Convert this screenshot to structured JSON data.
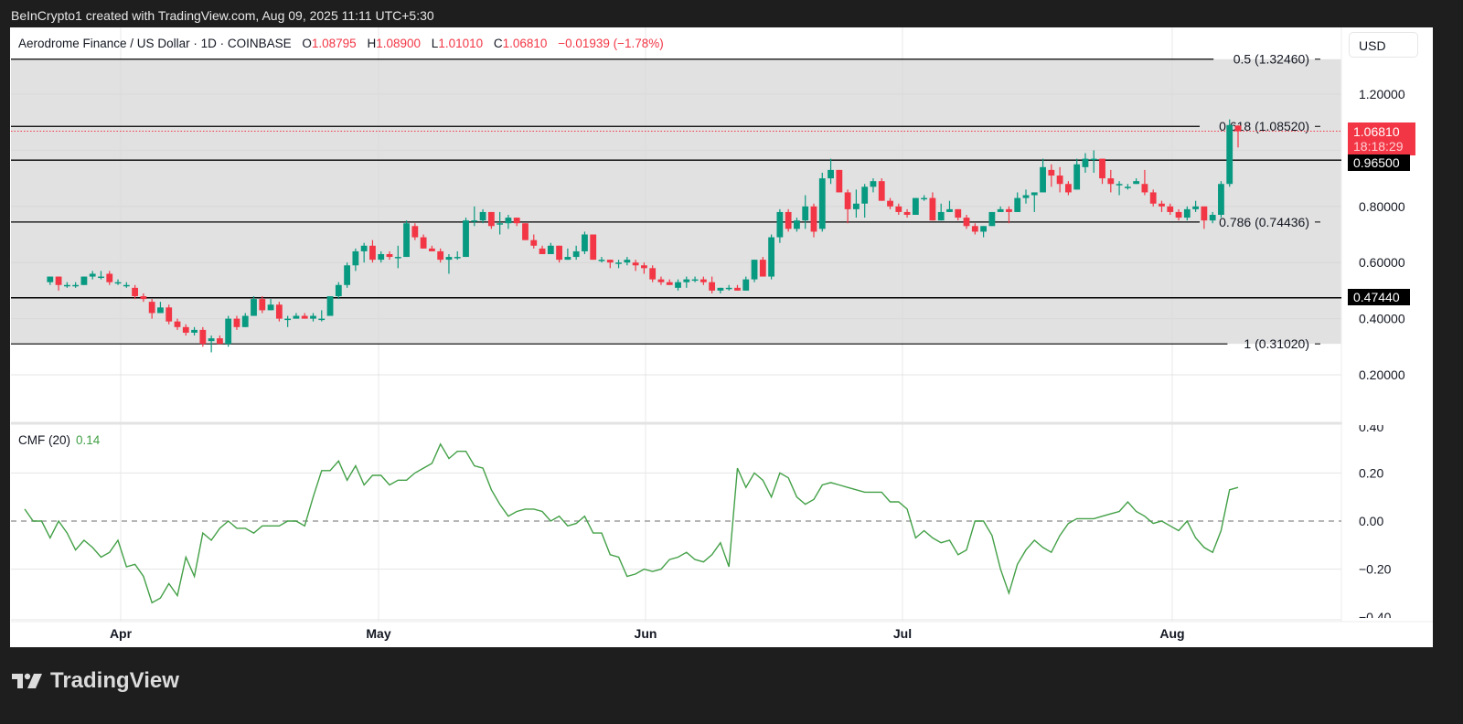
{
  "caption": "BeInCrypto1 created with TradingView.com, Aug 09, 2025 11:11 UTC+5:30",
  "symbol": {
    "title": "Aerodrome Finance / US Dollar · 1D · COINBASE",
    "open_label": "O",
    "open": "1.08795",
    "high_label": "H",
    "high": "1.08900",
    "low_label": "L",
    "low": "1.01010",
    "close_label": "C",
    "close": "1.06810",
    "change": "−0.01939 (−1.78%)"
  },
  "currency_button": "USD",
  "price_axis": {
    "ticks": [
      "1.20000",
      "0.80000",
      "0.60000",
      "0.40000",
      "0.20000"
    ],
    "last_price": "1.06810",
    "countdown": "18:18:29",
    "level_tags": [
      "0.96500",
      "0.47440"
    ]
  },
  "fib_levels": [
    {
      "label": "0.5 (1.32460)",
      "price": 1.3246
    },
    {
      "label": "0.618 (1.08520)",
      "price": 1.0852
    },
    {
      "label": "0.786 (0.74436)",
      "price": 0.74436
    },
    {
      "label": "1 (0.31020)",
      "price": 0.3102
    }
  ],
  "horizontal_lines": [
    0.965,
    0.4744
  ],
  "cmf": {
    "title": "CMF (20)",
    "value": "0.14",
    "ticks": [
      "0.40",
      "0.20",
      "0.00",
      "−0.20",
      "−0.40"
    ]
  },
  "time_axis": [
    "Apr",
    "May",
    "Jun",
    "Jul",
    "Aug"
  ],
  "branding": "TradingView",
  "colors": {
    "up": "#089981",
    "down": "#f23645",
    "cmf": "#43a047",
    "zone": "#e1e1e1"
  },
  "chart_data": [
    {
      "type": "candlestick",
      "title": "Aerodrome Finance / US Dollar · 1D · COINBASE",
      "ylabel": "USD",
      "ylim": [
        0.1,
        1.4
      ],
      "x_ticks": [
        "Apr",
        "May",
        "Jun",
        "Jul",
        "Aug"
      ],
      "x_range": [
        "2025-03-18",
        "2025-08-09"
      ],
      "annotations": [
        "Fib 0.5 (1.32460)",
        "Fib 0.618 (1.08520)",
        "Fib 0.786 (0.74436)",
        "Fib 1 (0.31020)",
        "Support 0.96500",
        "Support 0.47440"
      ],
      "last": {
        "open": 1.08795,
        "high": 1.089,
        "low": 1.0101,
        "close": 1.0681
      },
      "ohlc": [
        [
          0.53,
          0.55,
          0.52,
          0.55
        ],
        [
          0.55,
          0.55,
          0.5,
          0.52
        ],
        [
          0.52,
          0.53,
          0.51,
          0.52
        ],
        [
          0.52,
          0.53,
          0.51,
          0.52
        ],
        [
          0.52,
          0.55,
          0.52,
          0.55
        ],
        [
          0.55,
          0.57,
          0.54,
          0.56
        ],
        [
          0.55,
          0.57,
          0.54,
          0.55
        ],
        [
          0.56,
          0.57,
          0.52,
          0.53
        ],
        [
          0.53,
          0.54,
          0.52,
          0.53
        ],
        [
          0.52,
          0.53,
          0.51,
          0.52
        ],
        [
          0.51,
          0.52,
          0.47,
          0.48
        ],
        [
          0.48,
          0.49,
          0.46,
          0.47
        ],
        [
          0.46,
          0.47,
          0.4,
          0.42
        ],
        [
          0.42,
          0.46,
          0.42,
          0.44
        ],
        [
          0.44,
          0.45,
          0.38,
          0.39
        ],
        [
          0.39,
          0.4,
          0.36,
          0.37
        ],
        [
          0.37,
          0.38,
          0.34,
          0.35
        ],
        [
          0.35,
          0.37,
          0.34,
          0.36
        ],
        [
          0.36,
          0.37,
          0.3,
          0.31
        ],
        [
          0.32,
          0.34,
          0.28,
          0.33
        ],
        [
          0.33,
          0.34,
          0.31,
          0.31
        ],
        [
          0.31,
          0.41,
          0.3,
          0.4
        ],
        [
          0.4,
          0.41,
          0.36,
          0.37
        ],
        [
          0.37,
          0.42,
          0.37,
          0.41
        ],
        [
          0.41,
          0.48,
          0.41,
          0.47
        ],
        [
          0.47,
          0.48,
          0.42,
          0.43
        ],
        [
          0.43,
          0.47,
          0.43,
          0.45
        ],
        [
          0.45,
          0.46,
          0.39,
          0.4
        ],
        [
          0.4,
          0.41,
          0.37,
          0.4
        ],
        [
          0.4,
          0.42,
          0.4,
          0.41
        ],
        [
          0.41,
          0.42,
          0.4,
          0.4
        ],
        [
          0.4,
          0.42,
          0.39,
          0.41
        ],
        [
          0.4,
          0.43,
          0.39,
          0.4
        ],
        [
          0.41,
          0.48,
          0.41,
          0.48
        ],
        [
          0.48,
          0.53,
          0.47,
          0.52
        ],
        [
          0.52,
          0.6,
          0.51,
          0.59
        ],
        [
          0.59,
          0.65,
          0.57,
          0.64
        ],
        [
          0.64,
          0.67,
          0.6,
          0.66
        ],
        [
          0.66,
          0.68,
          0.6,
          0.61
        ],
        [
          0.61,
          0.64,
          0.6,
          0.63
        ],
        [
          0.63,
          0.64,
          0.61,
          0.62
        ],
        [
          0.62,
          0.66,
          0.58,
          0.62
        ],
        [
          0.62,
          0.75,
          0.62,
          0.74
        ],
        [
          0.73,
          0.74,
          0.68,
          0.69
        ],
        [
          0.69,
          0.7,
          0.65,
          0.65
        ],
        [
          0.65,
          0.66,
          0.64,
          0.64
        ],
        [
          0.64,
          0.65,
          0.6,
          0.61
        ],
        [
          0.61,
          0.63,
          0.56,
          0.62
        ],
        [
          0.62,
          0.64,
          0.61,
          0.62
        ],
        [
          0.62,
          0.76,
          0.62,
          0.75
        ],
        [
          0.75,
          0.8,
          0.73,
          0.75
        ],
        [
          0.75,
          0.79,
          0.74,
          0.78
        ],
        [
          0.78,
          0.78,
          0.72,
          0.73
        ],
        [
          0.74,
          0.78,
          0.7,
          0.74
        ],
        [
          0.74,
          0.77,
          0.72,
          0.76
        ],
        [
          0.76,
          0.76,
          0.73,
          0.74
        ],
        [
          0.74,
          0.74,
          0.68,
          0.68
        ],
        [
          0.68,
          0.7,
          0.65,
          0.66
        ],
        [
          0.65,
          0.66,
          0.63,
          0.63
        ],
        [
          0.63,
          0.67,
          0.63,
          0.66
        ],
        [
          0.66,
          0.66,
          0.6,
          0.61
        ],
        [
          0.61,
          0.65,
          0.61,
          0.62
        ],
        [
          0.62,
          0.66,
          0.61,
          0.64
        ],
        [
          0.64,
          0.71,
          0.63,
          0.7
        ],
        [
          0.7,
          0.7,
          0.61,
          0.61
        ],
        [
          0.61,
          0.62,
          0.6,
          0.61
        ],
        [
          0.61,
          0.61,
          0.58,
          0.6
        ],
        [
          0.6,
          0.61,
          0.58,
          0.6
        ],
        [
          0.6,
          0.62,
          0.59,
          0.61
        ],
        [
          0.6,
          0.61,
          0.57,
          0.59
        ],
        [
          0.59,
          0.6,
          0.56,
          0.58
        ],
        [
          0.58,
          0.59,
          0.53,
          0.54
        ],
        [
          0.54,
          0.55,
          0.52,
          0.53
        ],
        [
          0.53,
          0.54,
          0.52,
          0.52
        ],
        [
          0.51,
          0.54,
          0.5,
          0.53
        ],
        [
          0.53,
          0.55,
          0.51,
          0.54
        ],
        [
          0.54,
          0.55,
          0.53,
          0.54
        ],
        [
          0.54,
          0.55,
          0.52,
          0.53
        ],
        [
          0.53,
          0.55,
          0.49,
          0.5
        ],
        [
          0.5,
          0.51,
          0.49,
          0.51
        ],
        [
          0.51,
          0.52,
          0.5,
          0.51
        ],
        [
          0.51,
          0.52,
          0.5,
          0.5
        ],
        [
          0.5,
          0.55,
          0.5,
          0.54
        ],
        [
          0.54,
          0.61,
          0.53,
          0.61
        ],
        [
          0.61,
          0.62,
          0.55,
          0.55
        ],
        [
          0.55,
          0.7,
          0.54,
          0.69
        ],
        [
          0.69,
          0.79,
          0.67,
          0.78
        ],
        [
          0.78,
          0.79,
          0.71,
          0.72
        ],
        [
          0.72,
          0.76,
          0.71,
          0.75
        ],
        [
          0.75,
          0.84,
          0.72,
          0.8
        ],
        [
          0.8,
          0.81,
          0.69,
          0.71
        ],
        [
          0.72,
          0.92,
          0.71,
          0.9
        ],
        [
          0.9,
          0.97,
          0.88,
          0.93
        ],
        [
          0.93,
          0.93,
          0.85,
          0.85
        ],
        [
          0.85,
          0.86,
          0.74,
          0.79
        ],
        [
          0.79,
          0.86,
          0.76,
          0.81
        ],
        [
          0.81,
          0.88,
          0.76,
          0.87
        ],
        [
          0.87,
          0.9,
          0.85,
          0.89
        ],
        [
          0.89,
          0.9,
          0.82,
          0.82
        ],
        [
          0.82,
          0.83,
          0.79,
          0.8
        ],
        [
          0.8,
          0.81,
          0.77,
          0.78
        ],
        [
          0.78,
          0.79,
          0.76,
          0.77
        ],
        [
          0.77,
          0.83,
          0.77,
          0.83
        ],
        [
          0.83,
          0.84,
          0.82,
          0.83
        ],
        [
          0.83,
          0.85,
          0.75,
          0.75
        ],
        [
          0.75,
          0.81,
          0.75,
          0.78
        ],
        [
          0.78,
          0.82,
          0.78,
          0.79
        ],
        [
          0.79,
          0.79,
          0.75,
          0.76
        ],
        [
          0.76,
          0.77,
          0.72,
          0.73
        ],
        [
          0.73,
          0.74,
          0.7,
          0.71
        ],
        [
          0.71,
          0.73,
          0.69,
          0.73
        ],
        [
          0.73,
          0.78,
          0.73,
          0.78
        ],
        [
          0.78,
          0.8,
          0.78,
          0.79
        ],
        [
          0.79,
          0.8,
          0.74,
          0.78
        ],
        [
          0.78,
          0.85,
          0.78,
          0.83
        ],
        [
          0.83,
          0.86,
          0.81,
          0.84
        ],
        [
          0.84,
          0.85,
          0.78,
          0.85
        ],
        [
          0.85,
          0.97,
          0.85,
          0.94
        ],
        [
          0.93,
          0.95,
          0.87,
          0.91
        ],
        [
          0.91,
          0.94,
          0.85,
          0.88
        ],
        [
          0.88,
          0.89,
          0.84,
          0.85
        ],
        [
          0.86,
          0.97,
          0.86,
          0.95
        ],
        [
          0.94,
          0.99,
          0.92,
          0.97
        ],
        [
          0.97,
          1.0,
          0.92,
          0.97
        ],
        [
          0.97,
          0.97,
          0.88,
          0.9
        ],
        [
          0.9,
          0.93,
          0.85,
          0.88
        ],
        [
          0.88,
          0.89,
          0.84,
          0.88
        ],
        [
          0.87,
          0.88,
          0.86,
          0.87
        ],
        [
          0.88,
          0.9,
          0.88,
          0.89
        ],
        [
          0.88,
          0.93,
          0.84,
          0.85
        ],
        [
          0.85,
          0.86,
          0.8,
          0.81
        ],
        [
          0.81,
          0.82,
          0.78,
          0.8
        ],
        [
          0.8,
          0.81,
          0.77,
          0.78
        ],
        [
          0.78,
          0.79,
          0.75,
          0.76
        ],
        [
          0.76,
          0.8,
          0.75,
          0.79
        ],
        [
          0.79,
          0.82,
          0.78,
          0.8
        ],
        [
          0.8,
          0.8,
          0.72,
          0.75
        ],
        [
          0.75,
          0.78,
          0.74,
          0.77
        ],
        [
          0.77,
          0.89,
          0.76,
          0.88
        ],
        [
          0.88,
          1.11,
          0.87,
          1.09
        ],
        [
          1.08795,
          1.089,
          1.0101,
          1.0681
        ]
      ]
    },
    {
      "type": "line",
      "title": "CMF (20)",
      "ylim": [
        -0.4,
        0.4
      ],
      "y_ticks": [
        0.4,
        0.2,
        0.0,
        -0.2,
        -0.4
      ],
      "zero_line": "dashed",
      "x_ticks": [
        "Apr",
        "May",
        "Jun",
        "Jul",
        "Aug"
      ],
      "last_value": 0.14,
      "values": [
        0.05,
        0.0,
        0.0,
        -0.07,
        0.0,
        -0.05,
        -0.12,
        -0.08,
        -0.11,
        -0.15,
        -0.13,
        -0.08,
        -0.19,
        -0.18,
        -0.23,
        -0.34,
        -0.32,
        -0.26,
        -0.31,
        -0.15,
        -0.23,
        -0.05,
        -0.08,
        -0.03,
        0.0,
        -0.03,
        -0.03,
        -0.05,
        -0.02,
        -0.02,
        -0.02,
        0.0,
        0.0,
        -0.02,
        0.1,
        0.21,
        0.21,
        0.25,
        0.17,
        0.23,
        0.15,
        0.19,
        0.19,
        0.15,
        0.17,
        0.17,
        0.2,
        0.22,
        0.24,
        0.32,
        0.26,
        0.29,
        0.29,
        0.23,
        0.22,
        0.13,
        0.07,
        0.02,
        0.04,
        0.05,
        0.05,
        0.04,
        0.0,
        0.02,
        -0.02,
        -0.01,
        0.02,
        -0.05,
        -0.05,
        -0.14,
        -0.15,
        -0.23,
        -0.22,
        -0.2,
        -0.21,
        -0.2,
        -0.16,
        -0.15,
        -0.13,
        -0.16,
        -0.17,
        -0.14,
        -0.09,
        -0.19,
        0.22,
        0.14,
        0.2,
        0.17,
        0.1,
        0.2,
        0.18,
        0.1,
        0.07,
        0.09,
        0.15,
        0.16,
        0.15,
        0.14,
        0.13,
        0.12,
        0.12,
        0.12,
        0.08,
        0.08,
        0.05,
        -0.07,
        -0.04,
        -0.07,
        -0.09,
        -0.08,
        -0.14,
        -0.12,
        0.0,
        0.0,
        -0.06,
        -0.2,
        -0.3,
        -0.18,
        -0.12,
        -0.08,
        -0.11,
        -0.13,
        -0.06,
        -0.01,
        0.01,
        0.01,
        0.01,
        0.02,
        0.03,
        0.04,
        0.08,
        0.04,
        0.02,
        -0.01,
        0.0,
        -0.02,
        -0.04,
        0.0,
        -0.07,
        -0.11,
        -0.13,
        -0.04,
        0.13,
        0.14
      ]
    }
  ]
}
